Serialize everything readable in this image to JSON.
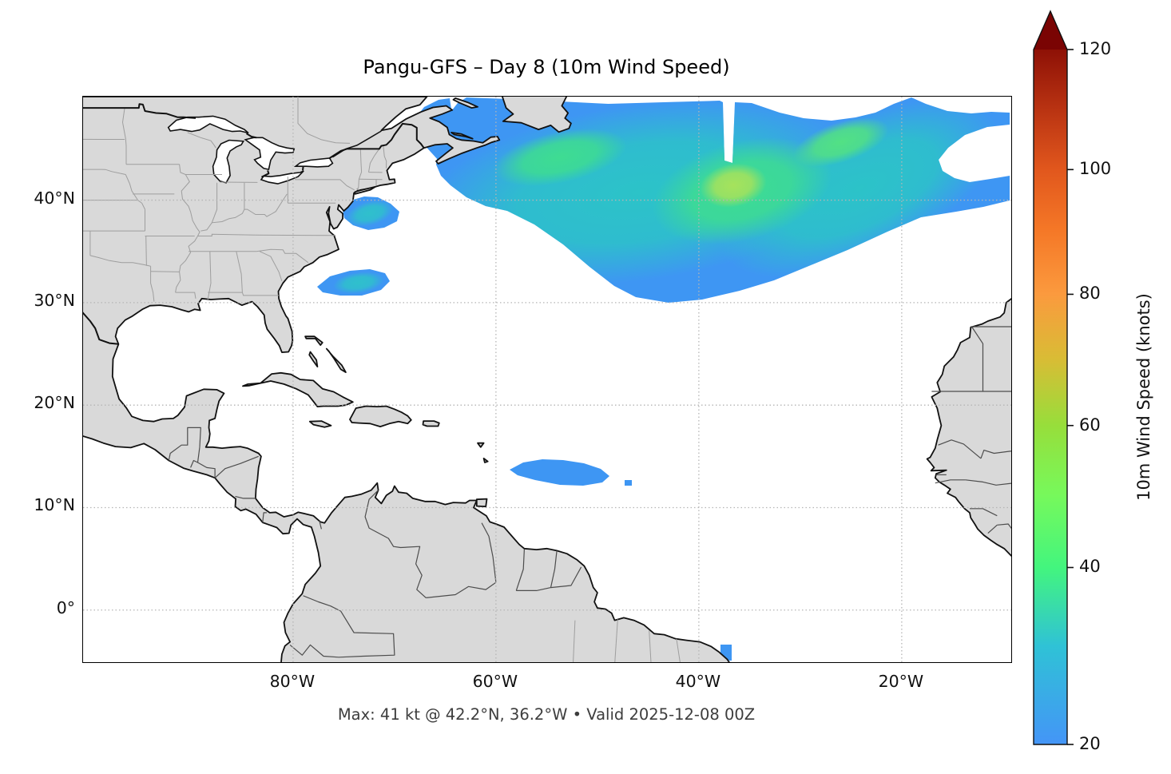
{
  "title": "Pangu-GFS – Day 8 (10m Wind Speed)",
  "caption": "Max: 41 kt @ 42.2°N, 36.2°W • Valid 2025-12-08 00Z",
  "axes": {
    "x_ticks": [
      "80°W",
      "60°W",
      "40°W",
      "20°W"
    ],
    "y_ticks": [
      "40°N",
      "30°N",
      "20°N",
      "10°N",
      "0°"
    ],
    "gridline_style": "dotted"
  },
  "colorbar": {
    "label": "10m Wind Speed (knots)",
    "tick_labels": [
      "20",
      "40",
      "60",
      "80",
      "100",
      "120"
    ],
    "min": 20,
    "max": 120,
    "extend": "max",
    "norm_gamma": 0.85,
    "stops": [
      [
        20,
        "#4495F7"
      ],
      [
        30,
        "#2FC2D6"
      ],
      [
        40,
        "#43F57E"
      ],
      [
        50,
        "#77F95B"
      ],
      [
        60,
        "#97DE3B"
      ],
      [
        70,
        "#D9BC35"
      ],
      [
        80,
        "#FB9A3E"
      ],
      [
        90,
        "#F57827"
      ],
      [
        100,
        "#E1571D"
      ],
      [
        110,
        "#B93312"
      ],
      [
        120,
        "#8E1106"
      ]
    ],
    "arrow_color": "#7A0403"
  },
  "map_colors": {
    "land": "#D9D9D9",
    "coastline": "#111111",
    "national_border": "#111111",
    "country_border": "#4D4D4D",
    "state_border": "#9E9E9E",
    "gridline": "#B5B5B5",
    "ocean": "#FFFFFF",
    "field_base_blue": "#3E96F3",
    "field_teal": "#2CC3C8",
    "field_green": "#3EDC92",
    "field_green2": "#52E184",
    "field_bright_core": "#A6E25C",
    "field_patch_teal": "#2FC0CC"
  },
  "chart_data": {
    "type": "heatmap",
    "title": "Pangu-GFS – Day 8 (10m Wind Speed)",
    "variable": "10m wind speed",
    "units": "knots",
    "model": "Pangu-GFS",
    "forecast_day": 8,
    "valid_time": "2025-12-08 00Z",
    "max_value_kt": 41,
    "max_location": {
      "lat": "42.2°N",
      "lon": "36.2°W"
    },
    "display_threshold_kt": 20,
    "scale_range_kt": [
      20,
      120
    ],
    "lon_extent_deg": [
      -100.7,
      -9.0
    ],
    "lat_extent_deg": [
      -5.3,
      50.1
    ],
    "legend_position": "right colorbar, extended max arrow",
    "features": [
      {
        "name": "north-atlantic-gale-area",
        "lon_range": [
          -64,
          -9
        ],
        "lat_range": [
          30,
          49
        ],
        "peak_kt": 41,
        "peak_at": [
          42.2,
          -36.2
        ],
        "note": "large blue/teal area with green cores near 44N 53W, 45N 26W and yellow-green max near 42N 36W; narrow white slit at ~37W from top edge to ~43.5N"
      },
      {
        "name": "gulf-of-st-lawrence-patch",
        "lon_range": [
          -66,
          -58
        ],
        "lat_range": [
          45,
          49.5
        ],
        "peak_kt": 27
      },
      {
        "name": "off-new-england-patch",
        "lon_range": [
          -75,
          -69.5
        ],
        "lat_range": [
          36.8,
          40.3
        ],
        "peak_kt": 30
      },
      {
        "name": "off-carolinas-patch",
        "lon_range": [
          -78,
          -70.5
        ],
        "lat_range": [
          30.5,
          33.5
        ],
        "peak_kt": 30
      },
      {
        "name": "east-of-windward-islands-patch",
        "lon_range": [
          -58.6,
          -48.5
        ],
        "lat_range": [
          11.9,
          14.8
        ],
        "peak_kt": 24
      },
      {
        "name": "small-dot-east-of-patch",
        "lon": -47.2,
        "lat": 12.3,
        "peak_kt": 21
      },
      {
        "name": "near-brazil-coast-dot",
        "lon": -37.5,
        "lat": -4.5,
        "peak_kt": 22
      }
    ]
  }
}
